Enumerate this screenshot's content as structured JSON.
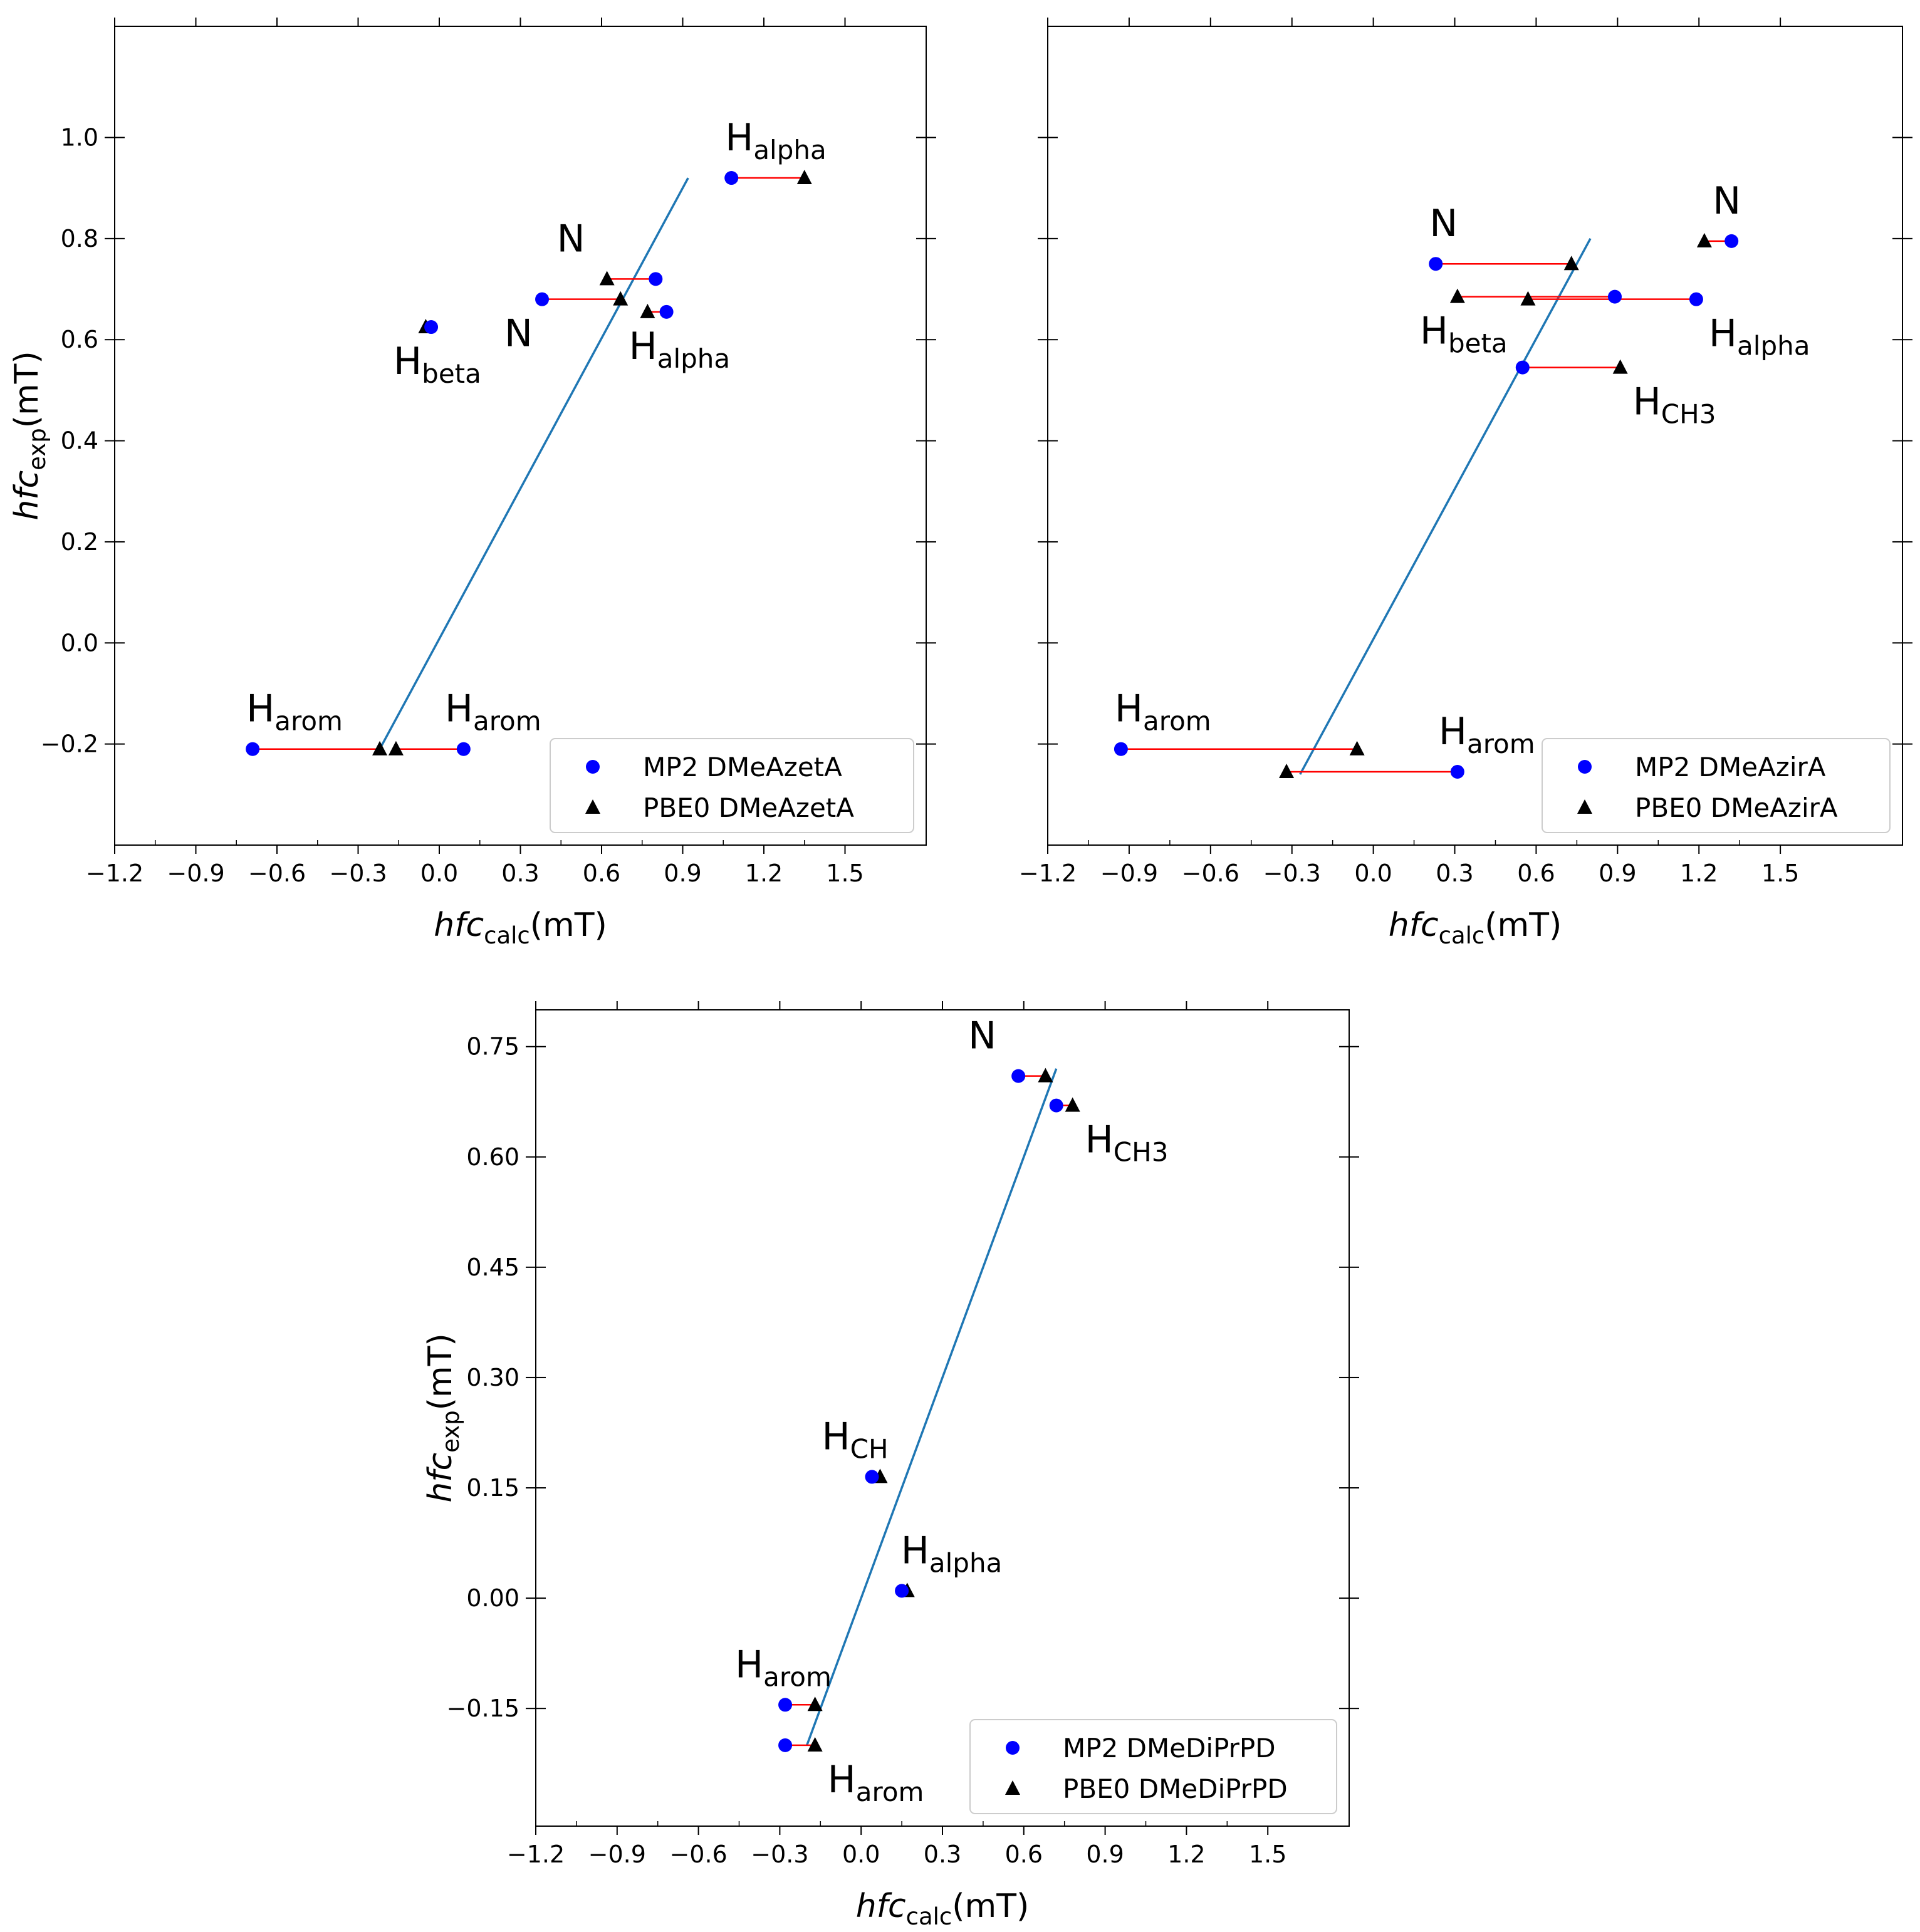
{
  "figure": {
    "caption": ""
  },
  "chart_data": [
    {
      "type": "scatter",
      "title": "",
      "xlabel": {
        "italic": "hfc",
        "sub": "calc",
        "unit": "(mT)"
      },
      "ylabel": {
        "italic": "hfc",
        "sub": "exp",
        "unit": "(mT)"
      },
      "xlim": [
        -1.2,
        1.8
      ],
      "ylim": [
        -0.4,
        1.22
      ],
      "xticks": [
        -1.2,
        -0.9,
        -0.6,
        -0.3,
        0.0,
        0.3,
        0.6,
        0.9,
        1.2,
        1.5
      ],
      "xtick_labels": [
        "−1.2",
        "−0.9",
        "−0.6",
        "−0.3",
        "0.0",
        "0.3",
        "0.6",
        "0.9",
        "1.2",
        "1.5"
      ],
      "yticks": [
        -0.2,
        0.0,
        0.2,
        0.4,
        0.6,
        0.8,
        1.0
      ],
      "ytick_labels": [
        "−0.2",
        "0.0",
        "0.2",
        "0.4",
        "0.6",
        "0.8",
        "1.0"
      ],
      "grid": false,
      "legend_position": "bottom-right",
      "series": [
        {
          "name": "MP2 DMeAzetA",
          "marker": "circle",
          "color": "#0000ff",
          "points": [
            [
              1.08,
              0.92
            ],
            [
              0.8,
              0.72
            ],
            [
              0.38,
              0.68
            ],
            [
              0.84,
              0.655
            ],
            [
              -0.03,
              0.625
            ],
            [
              -0.69,
              -0.21
            ],
            [
              0.09,
              -0.21
            ]
          ]
        },
        {
          "name": "PBE0 DMeAzetA",
          "marker": "triangle",
          "color": "#000000",
          "points": [
            [
              1.35,
              0.92
            ],
            [
              0.62,
              0.72
            ],
            [
              0.67,
              0.68
            ],
            [
              0.77,
              0.655
            ],
            [
              -0.05,
              0.625
            ],
            [
              -0.22,
              -0.21
            ],
            [
              -0.16,
              -0.21
            ]
          ]
        }
      ],
      "arrows_color": "#ff0000",
      "fit_line": {
        "color": "#1f77b4",
        "from": [
          -0.22,
          -0.21
        ],
        "to": [
          0.92,
          0.92
        ]
      },
      "annotations": [
        {
          "main": "H",
          "sub": "alpha",
          "x": 1.08,
          "y": 0.92,
          "place": "above-right"
        },
        {
          "main": "N",
          "sub": "",
          "x": 0.62,
          "y": 0.72,
          "place": "above-left"
        },
        {
          "main": "N",
          "sub": "",
          "x": 0.38,
          "y": 0.68,
          "place": "below"
        },
        {
          "main": "H",
          "sub": "alpha",
          "x": 0.84,
          "y": 0.655,
          "place": "below"
        },
        {
          "main": "H",
          "sub": "beta",
          "x": -0.03,
          "y": 0.625,
          "place": "below"
        },
        {
          "main": "H",
          "sub": "arom",
          "x": -0.69,
          "y": -0.21,
          "place": "above-right"
        },
        {
          "main": "H",
          "sub": "arom",
          "x": 0.09,
          "y": -0.21,
          "place": "above"
        }
      ]
    },
    {
      "type": "scatter",
      "title": "",
      "xlabel": {
        "italic": "hfc",
        "sub": "calc",
        "unit": "(mT)"
      },
      "ylabel": null,
      "xlim": [
        -1.2,
        1.95
      ],
      "ylim": [
        -0.4,
        1.22
      ],
      "xticks": [
        -1.2,
        -0.9,
        -0.6,
        -0.3,
        0.0,
        0.3,
        0.6,
        0.9,
        1.2,
        1.5
      ],
      "xtick_labels": [
        "−1.2",
        "−0.9",
        "−0.6",
        "−0.3",
        "0.0",
        "0.3",
        "0.6",
        "0.9",
        "1.2",
        "1.5"
      ],
      "yticks": [
        -0.2,
        0.0,
        0.2,
        0.4,
        0.6,
        0.8,
        1.0
      ],
      "ytick_labels": [],
      "grid": false,
      "legend_position": "bottom-right",
      "series": [
        {
          "name": "MP2 DMeAzirA",
          "marker": "circle",
          "color": "#0000ff",
          "points": [
            [
              1.32,
              0.795
            ],
            [
              0.23,
              0.75
            ],
            [
              0.89,
              0.685
            ],
            [
              1.19,
              0.68
            ],
            [
              0.55,
              0.545
            ],
            [
              -0.93,
              -0.21
            ],
            [
              0.31,
              -0.255
            ]
          ]
        },
        {
          "name": "PBE0 DMeAzirA",
          "marker": "triangle",
          "color": "#000000",
          "points": [
            [
              1.22,
              0.795
            ],
            [
              0.73,
              0.75
            ],
            [
              0.31,
              0.685
            ],
            [
              0.57,
              0.68
            ],
            [
              0.91,
              0.545
            ],
            [
              -0.06,
              -0.21
            ],
            [
              -0.32,
              -0.255
            ]
          ]
        }
      ],
      "arrows_color": "#ff0000",
      "fit_line": {
        "color": "#1f77b4",
        "from": [
          -0.27,
          -0.26
        ],
        "to": [
          0.8,
          0.8
        ]
      },
      "annotations": [
        {
          "main": "N",
          "sub": "",
          "x": 1.32,
          "y": 0.795,
          "place": "above"
        },
        {
          "main": "N",
          "sub": "",
          "x": 0.23,
          "y": 0.75,
          "place": "above-right"
        },
        {
          "main": "H",
          "sub": "beta",
          "x": 0.31,
          "y": 0.685,
          "place": "below"
        },
        {
          "main": "H",
          "sub": "alpha",
          "x": 1.19,
          "y": 0.68,
          "place": "below-right"
        },
        {
          "main": "H",
          "sub": "CH3",
          "x": 0.91,
          "y": 0.545,
          "place": "below-right"
        },
        {
          "main": "H",
          "sub": "arom",
          "x": -0.93,
          "y": -0.21,
          "place": "above-right"
        },
        {
          "main": "H",
          "sub": "arom",
          "x": 0.31,
          "y": -0.255,
          "place": "above"
        }
      ]
    },
    {
      "type": "scatter",
      "title": "",
      "xlabel": {
        "italic": "hfc",
        "sub": "calc",
        "unit": "(mT)"
      },
      "ylabel": {
        "italic": "hfc",
        "sub": "exp",
        "unit": "(mT)"
      },
      "xlim": [
        -1.2,
        1.8
      ],
      "ylim": [
        -0.31,
        0.8
      ],
      "xticks": [
        -1.2,
        -0.9,
        -0.6,
        -0.3,
        0.0,
        0.3,
        0.6,
        0.9,
        1.2,
        1.5
      ],
      "xtick_labels": [
        "−1.2",
        "−0.9",
        "−0.6",
        "−0.3",
        "0.0",
        "0.3",
        "0.6",
        "0.9",
        "1.2",
        "1.5"
      ],
      "yticks": [
        -0.15,
        0.0,
        0.15,
        0.3,
        0.45,
        0.6,
        0.75
      ],
      "ytick_labels": [
        "−0.15",
        "0.00",
        "0.15",
        "0.30",
        "0.45",
        "0.60",
        "0.75"
      ],
      "grid": false,
      "legend_position": "bottom-right",
      "series": [
        {
          "name": "MP2 DMeDiPrPD",
          "marker": "circle",
          "color": "#0000ff",
          "points": [
            [
              0.58,
              0.71
            ],
            [
              0.72,
              0.67
            ],
            [
              0.04,
              0.165
            ],
            [
              0.15,
              0.01
            ],
            [
              -0.28,
              -0.145
            ],
            [
              -0.28,
              -0.2
            ]
          ]
        },
        {
          "name": "PBE0 DMeDiPrPD",
          "marker": "triangle",
          "color": "#000000",
          "points": [
            [
              0.68,
              0.71
            ],
            [
              0.78,
              0.67
            ],
            [
              0.07,
              0.165
            ],
            [
              0.17,
              0.01
            ],
            [
              -0.17,
              -0.145
            ],
            [
              -0.17,
              -0.2
            ]
          ]
        }
      ],
      "arrows_color": "#ff0000",
      "fit_line": {
        "color": "#1f77b4",
        "from": [
          -0.2,
          -0.2
        ],
        "to": [
          0.72,
          0.72
        ]
      },
      "annotations": [
        {
          "main": "N",
          "sub": "",
          "x": 0.58,
          "y": 0.71,
          "place": "above-left"
        },
        {
          "main": "H",
          "sub": "CH3",
          "x": 0.78,
          "y": 0.67,
          "place": "below-right"
        },
        {
          "main": "H",
          "sub": "CH",
          "x": 0.04,
          "y": 0.165,
          "place": "above-left"
        },
        {
          "main": "H",
          "sub": "alpha",
          "x": 0.17,
          "y": 0.01,
          "place": "above-right"
        },
        {
          "main": "H",
          "sub": "arom",
          "x": -0.28,
          "y": -0.145,
          "place": "above-left"
        },
        {
          "main": "H",
          "sub": "arom",
          "x": -0.17,
          "y": -0.2,
          "place": "below-right"
        }
      ]
    }
  ]
}
